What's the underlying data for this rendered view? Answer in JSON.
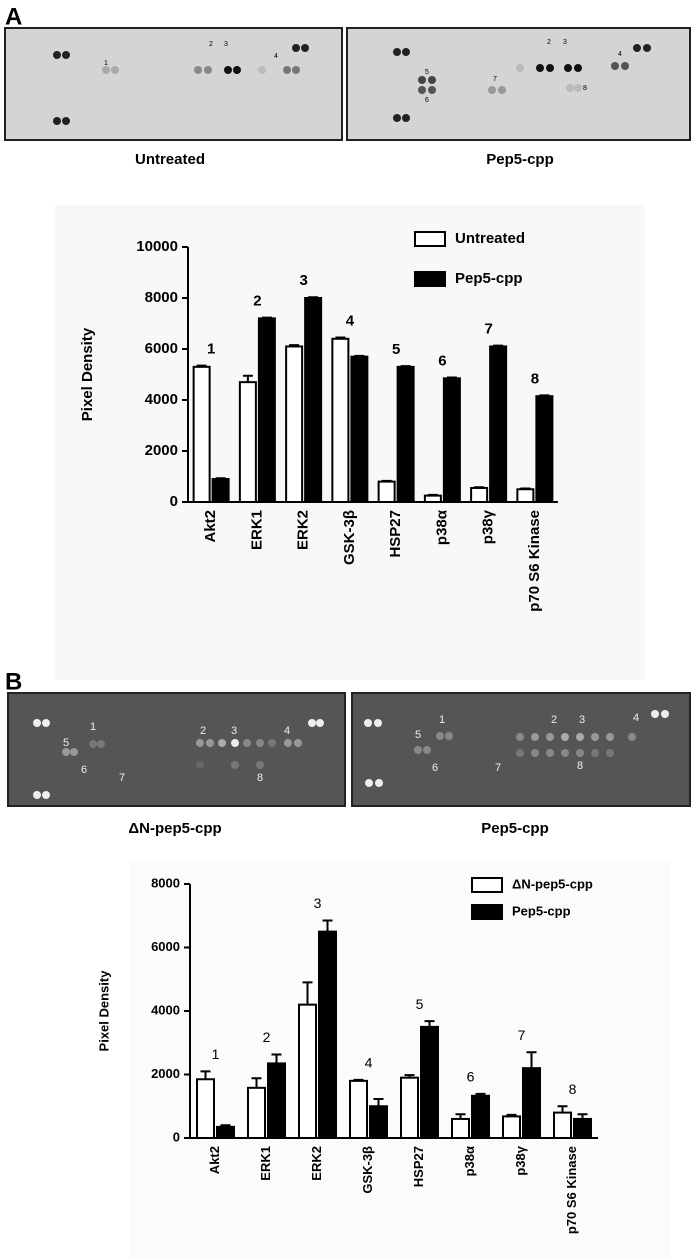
{
  "panels": [
    {
      "label": "A",
      "blots": [
        {
          "caption": "Untreated",
          "spot_labels": [
            "1",
            "2",
            "3",
            "4"
          ]
        },
        {
          "caption": "Pep5-cpp",
          "spot_labels": [
            "2",
            "3",
            "4",
            "5",
            "6",
            "7",
            "8"
          ]
        }
      ]
    },
    {
      "label": "B",
      "blots": [
        {
          "caption": "ΔN-pep5-cpp",
          "spot_labels": [
            "1",
            "2",
            "3",
            "4",
            "5",
            "6",
            "7",
            "8"
          ]
        },
        {
          "caption": "Pep5-cpp",
          "spot_labels": [
            "1",
            "2",
            "3",
            "4",
            "5",
            "6",
            "7",
            "8"
          ]
        }
      ]
    }
  ],
  "chart_data": [
    {
      "type": "bar",
      "y_label": "Pixel Density",
      "categories": [
        "Akt2",
        "ERK1",
        "ERK2",
        "GSK-3β",
        "HSP27",
        "p38α",
        "p38γ",
        "p70 S6 Kinase"
      ],
      "annotations": [
        "1",
        "2",
        "3",
        "4",
        "5",
        "6",
        "7",
        "8"
      ],
      "series": [
        {
          "name": "Untreated",
          "color": "#ffffff",
          "values": [
            5300,
            4700,
            6100,
            6400,
            800,
            250,
            550,
            500
          ],
          "errors": [
            50,
            250,
            50,
            50,
            30,
            30,
            30,
            30
          ]
        },
        {
          "name": "Pep5-cpp",
          "color": "#000000",
          "values": [
            900,
            7200,
            8000,
            5700,
            5300,
            4850,
            6100,
            4150
          ],
          "errors": [
            30,
            30,
            30,
            30,
            30,
            30,
            30,
            30
          ]
        }
      ],
      "ylim": [
        0,
        10000
      ],
      "yticks": [
        0,
        2000,
        4000,
        6000,
        8000,
        10000
      ],
      "grid": false,
      "legend": "top-right"
    },
    {
      "type": "bar",
      "y_label": "Pixel Density",
      "categories": [
        "Akt2",
        "ERK1",
        "ERK2",
        "GSK-3β",
        "HSP27",
        "p38α",
        "p38γ",
        "p70 S6 Kinase"
      ],
      "annotations": [
        "1",
        "2",
        "3",
        "4",
        "5",
        "6",
        "7",
        "8"
      ],
      "series": [
        {
          "name": "ΔN-pep5-cpp",
          "color": "#ffffff",
          "values": [
            1850,
            1580,
            4200,
            1800,
            1900,
            600,
            680,
            800
          ],
          "errors": [
            250,
            300,
            700,
            30,
            80,
            150,
            50,
            200
          ]
        },
        {
          "name": "Pep5-cpp",
          "color": "#000000",
          "values": [
            350,
            2350,
            6500,
            1000,
            3500,
            1330,
            2200,
            600
          ],
          "errors": [
            50,
            280,
            350,
            230,
            180,
            60,
            500,
            150
          ]
        }
      ],
      "ylim": [
        0,
        8000
      ],
      "yticks": [
        0,
        2000,
        4000,
        6000,
        8000
      ],
      "grid": false,
      "legend": "top-right"
    }
  ]
}
